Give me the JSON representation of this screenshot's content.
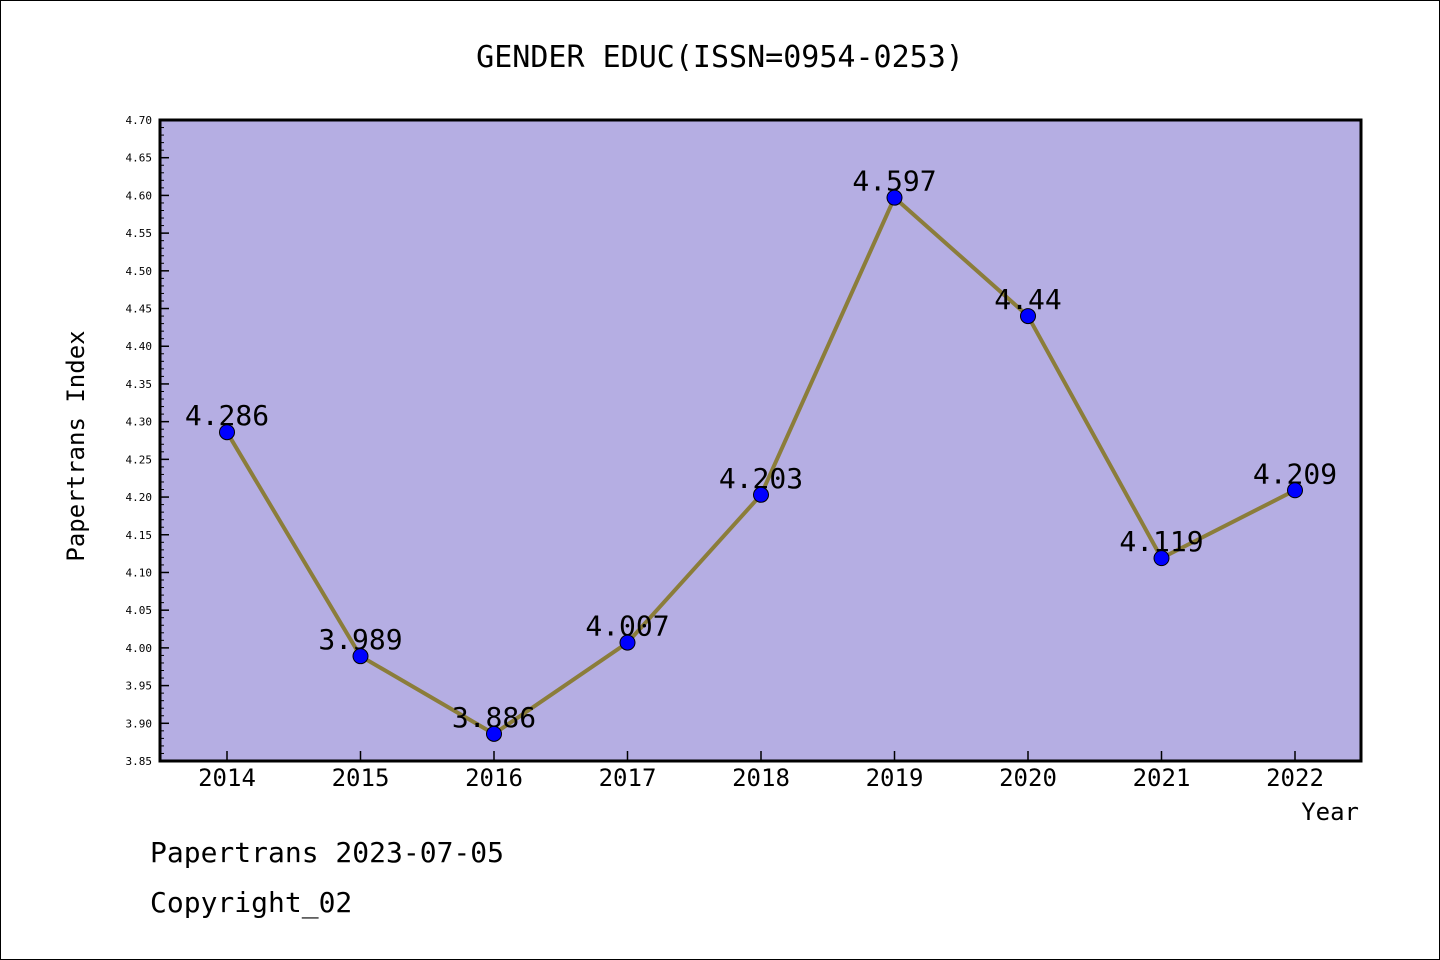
{
  "chart_data": {
    "type": "line",
    "title": "GENDER EDUC(ISSN=0954-0253)",
    "xlabel": "Year",
    "ylabel": "Papertrans Index",
    "x": [
      "2014",
      "2015",
      "2016",
      "2017",
      "2018",
      "2019",
      "2020",
      "2021",
      "2022"
    ],
    "series": [
      {
        "values": [
          4.286,
          3.989,
          3.886,
          4.007,
          4.203,
          4.597,
          4.44,
          4.119,
          4.209
        ],
        "labels": [
          "4.286",
          "3.989",
          "3.886",
          "4.007",
          "4.203",
          "4.597",
          "4.44",
          "4.119",
          "4.209"
        ]
      }
    ],
    "ylim": [
      3.85,
      4.7
    ],
    "yticks": [
      "4.70",
      "4.65",
      "4.60",
      "4.55",
      "4.50",
      "4.45",
      "4.40",
      "4.35",
      "4.30",
      "4.25",
      "4.20",
      "4.15",
      "4.10",
      "4.05",
      "4.00",
      "3.95",
      "3.90",
      "3.85"
    ],
    "colors": {
      "plot_bg": "#b5aee3",
      "line": "#8b7d3a",
      "marker": "#0000ff"
    },
    "grid": false
  },
  "footer": {
    "line1": "Papertrans 2023-07-05",
    "line2": "Copyright_02"
  }
}
